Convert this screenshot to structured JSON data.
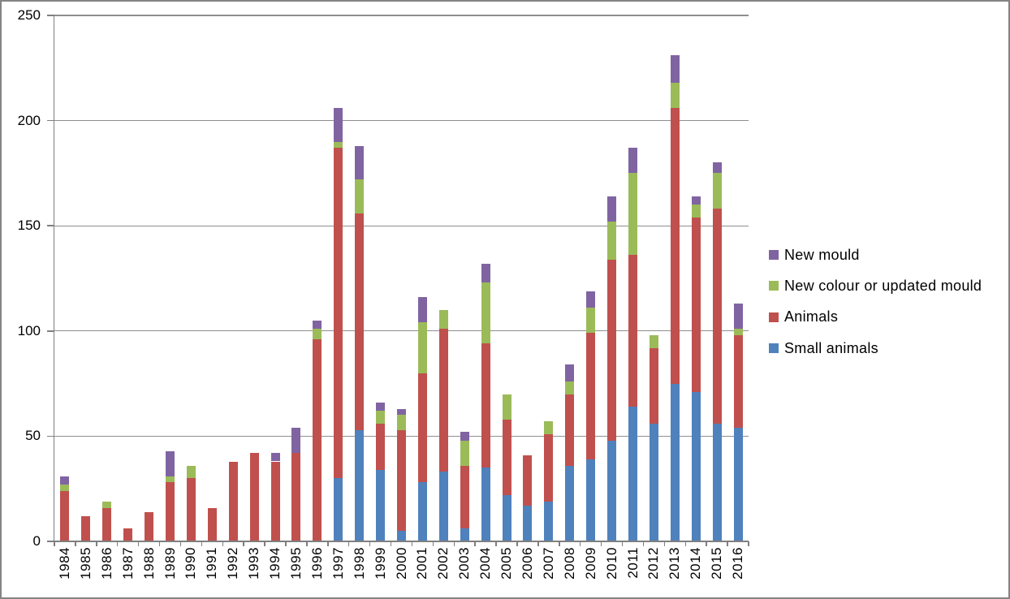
{
  "window": {
    "background": "#FFFFFF",
    "border_color": "#848484"
  },
  "chart_data": {
    "type": "bar",
    "stacked": true,
    "title": "",
    "xlabel": "",
    "ylabel": "",
    "categories": [
      "1984",
      "1985",
      "1986",
      "1987",
      "1988",
      "1989",
      "1990",
      "1991",
      "1992",
      "1993",
      "1994",
      "1995",
      "1996",
      "1997",
      "1998",
      "1999",
      "2000",
      "2001",
      "2002",
      "2003",
      "2004",
      "2005",
      "2006",
      "2007",
      "2008",
      "2009",
      "2010",
      "2011",
      "2012",
      "2013",
      "2014",
      "2015",
      "2016"
    ],
    "series": [
      {
        "name": "Small animals",
        "color": "#4F81BD",
        "values": [
          0,
          0,
          0,
          0,
          0,
          0,
          0,
          0,
          0,
          0,
          0,
          0,
          0,
          30,
          53,
          34,
          5,
          28,
          33,
          6,
          35,
          22,
          17,
          19,
          36,
          39,
          48,
          64,
          56,
          75,
          71,
          56,
          54
        ]
      },
      {
        "name": "Animals",
        "color": "#C0504D",
        "values": [
          24,
          12,
          16,
          6,
          14,
          28,
          30,
          16,
          38,
          42,
          38,
          42,
          96,
          157,
          103,
          22,
          48,
          52,
          68,
          30,
          59,
          36,
          24,
          32,
          34,
          60,
          86,
          72,
          36,
          131,
          83,
          102,
          44
        ]
      },
      {
        "name": "New colour or updated mould",
        "color": "#9BBB59",
        "values": [
          3,
          0,
          3,
          0,
          0,
          3,
          6,
          0,
          0,
          0,
          0,
          0,
          5,
          3,
          16,
          6,
          7,
          24,
          9,
          12,
          29,
          12,
          0,
          6,
          6,
          12,
          18,
          39,
          6,
          12,
          6,
          17,
          3
        ]
      },
      {
        "name": "New mould",
        "color": "#8064A2",
        "values": [
          4,
          0,
          0,
          0,
          0,
          12,
          0,
          0,
          0,
          0,
          4,
          12,
          4,
          16,
          16,
          4,
          3,
          12,
          0,
          4,
          9,
          0,
          0,
          0,
          8,
          8,
          12,
          12,
          0,
          13,
          4,
          5,
          12
        ]
      }
    ],
    "ylim": [
      0,
      250
    ],
    "yticks": [
      "0",
      "50",
      "100",
      "150",
      "200",
      "250"
    ],
    "grid": true,
    "legend_position": "right"
  },
  "legend": {
    "items": [
      {
        "label": "New mould",
        "color": "#8064A2"
      },
      {
        "label": "New colour or updated mould",
        "color": "#9BBB59"
      },
      {
        "label": "Animals",
        "color": "#C0504D"
      },
      {
        "label": "Small animals",
        "color": "#4F81BD"
      }
    ]
  },
  "axes": {
    "gridline_color": "#8E8E8E",
    "axis_color": "#7F7F7F",
    "tick_color": "#7F7F7F"
  }
}
